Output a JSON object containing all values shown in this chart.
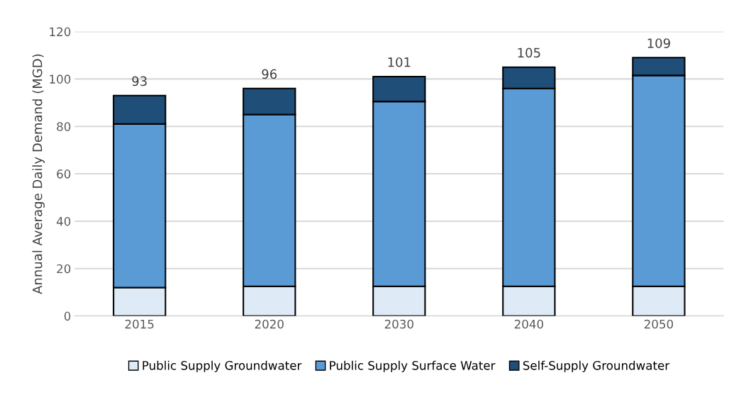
{
  "chart_data": {
    "type": "bar",
    "stacked": true,
    "ylabel": "Annual Average Daily Demand (MGD)",
    "categories": [
      "2015",
      "2020",
      "2030",
      "2040",
      "2050"
    ],
    "series": [
      {
        "name": "Public Supply Groundwater",
        "color": "#deebf7",
        "values": [
          12,
          12.5,
          12.5,
          12.5,
          12.5
        ]
      },
      {
        "name": "Public Supply Surface Water",
        "color": "#5b9bd5",
        "values": [
          69,
          72.5,
          78,
          83.5,
          89
        ]
      },
      {
        "name": "Self-Supply Groundwater",
        "color": "#1f4e79",
        "values": [
          12,
          11,
          10.5,
          9,
          7.5
        ]
      }
    ],
    "totals": [
      "93",
      "96",
      "101",
      "105",
      "109"
    ],
    "ylim": [
      0,
      120
    ],
    "yticks": [
      0,
      20,
      40,
      60,
      80,
      100,
      120
    ],
    "grid": "y",
    "legend": "bottom"
  }
}
